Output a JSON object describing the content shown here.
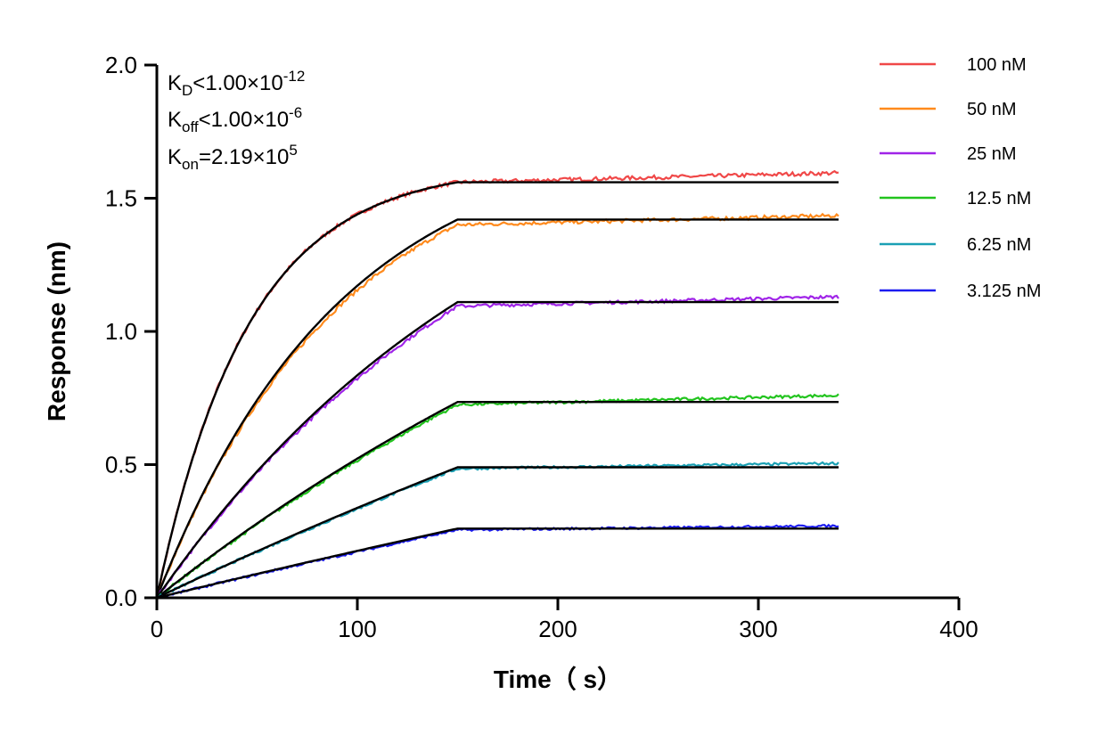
{
  "chart_data": {
    "type": "line",
    "xlabel": "Time（ s）",
    "ylabel": "Response (nm)",
    "xlim": [
      0,
      400
    ],
    "ylim": [
      0,
      2.0
    ],
    "xticks": [
      "0",
      "100",
      "200",
      "300",
      "400"
    ],
    "yticks": [
      "0.0",
      "0.5",
      "1.0",
      "1.5",
      "2.0"
    ],
    "grid": false,
    "legend_placement": "top-right",
    "association_end_s": 150,
    "dissociation_end_s": 340,
    "kon": 219000,
    "fit_color": "#000000",
    "annotations": {
      "kd": {
        "base": "K",
        "sub": "D",
        "text": "<1.00×10",
        "sup": "-12"
      },
      "koff": {
        "base": "K",
        "sub": "off",
        "text": "<1.00×10",
        "sup": "-6"
      },
      "kon": {
        "base": "K",
        "sub": "on",
        "text": "=2.19×10",
        "sup": "5"
      }
    },
    "series": [
      {
        "name": "100 nM",
        "conc_nM": 100,
        "color": "#f04848",
        "fit_plateau": 1.56,
        "data_at_150": 1.56,
        "data_end": 1.595
      },
      {
        "name": "50 nM",
        "conc_nM": 50,
        "color": "#ff8a1c",
        "fit_plateau": 1.42,
        "data_at_150": 1.4,
        "data_end": 1.435
      },
      {
        "name": "25 nM",
        "conc_nM": 25,
        "color": "#a024e8",
        "fit_plateau": 1.11,
        "data_at_150": 1.095,
        "data_end": 1.13
      },
      {
        "name": "12.5 nM",
        "conc_nM": 12.5,
        "color": "#22c41e",
        "fit_plateau": 0.735,
        "data_at_150": 0.725,
        "data_end": 0.76
      },
      {
        "name": "6.25 nM",
        "conc_nM": 6.25,
        "color": "#1aa0b4",
        "fit_plateau": 0.49,
        "data_at_150": 0.485,
        "data_end": 0.505
      },
      {
        "name": "3.125 nM",
        "conc_nM": 3.125,
        "color": "#1c1cf0",
        "fit_plateau": 0.26,
        "data_at_150": 0.255,
        "data_end": 0.27
      }
    ]
  }
}
